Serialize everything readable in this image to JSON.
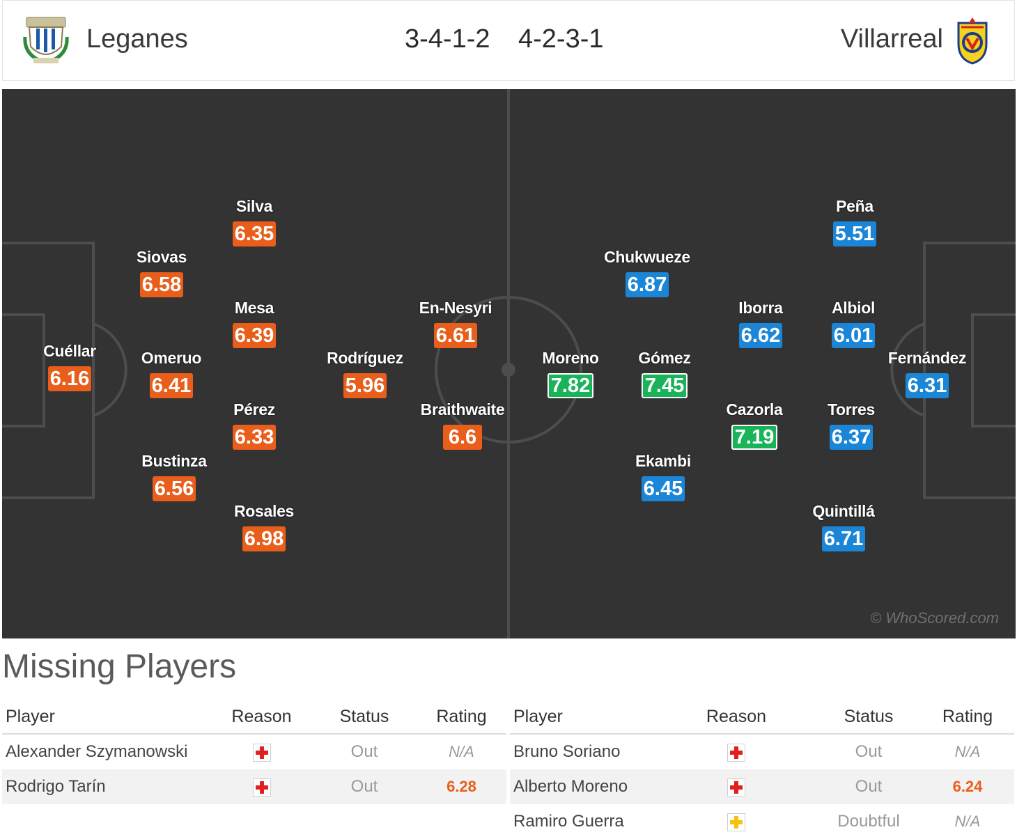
{
  "header": {
    "home_team": "Leganes",
    "away_team": "Villarreal",
    "home_formation": "3-4-1-2",
    "away_formation": "4-2-3-1"
  },
  "pitch": {
    "watermark": "© WhoScored.com",
    "colors": {
      "pitch": "#333333",
      "lines": "#4a4a4a",
      "orange": "#e95e1a",
      "blue": "#1b86d8",
      "green": "#19b35a"
    },
    "home_players": [
      {
        "name": "Cuéllar",
        "rating": "6.16"
      },
      {
        "name": "Siovas",
        "rating": "6.58"
      },
      {
        "name": "Omeruo",
        "rating": "6.41"
      },
      {
        "name": "Bustinza",
        "rating": "6.56"
      },
      {
        "name": "Silva",
        "rating": "6.35"
      },
      {
        "name": "Mesa",
        "rating": "6.39"
      },
      {
        "name": "Pérez",
        "rating": "6.33"
      },
      {
        "name": "Rosales",
        "rating": "6.98"
      },
      {
        "name": "Rodríguez",
        "rating": "5.96"
      },
      {
        "name": "En-Nesyri",
        "rating": "6.61"
      },
      {
        "name": "Braithwaite",
        "rating": "6.6"
      }
    ],
    "away_players": [
      {
        "name": "Moreno",
        "rating": "7.82",
        "highlight": true
      },
      {
        "name": "Chukwueze",
        "rating": "6.87"
      },
      {
        "name": "Gómez",
        "rating": "7.45",
        "highlight": true
      },
      {
        "name": "Ekambi",
        "rating": "6.45"
      },
      {
        "name": "Iborra",
        "rating": "6.62"
      },
      {
        "name": "Cazorla",
        "rating": "7.19",
        "highlight": true
      },
      {
        "name": "Peña",
        "rating": "5.51"
      },
      {
        "name": "Albiol",
        "rating": "6.01"
      },
      {
        "name": "Torres",
        "rating": "6.37"
      },
      {
        "name": "Quintillá",
        "rating": "6.71"
      },
      {
        "name": "Fernández",
        "rating": "6.31"
      }
    ]
  },
  "missing": {
    "title": "Missing Players",
    "columns": {
      "player": "Player",
      "reason": "Reason",
      "status": "Status",
      "rating": "Rating"
    },
    "home": [
      {
        "player": "Alexander Szymanowski",
        "reason_icon": "injury-cross-icon",
        "status": "Out",
        "rating": "N/A"
      },
      {
        "player": "Rodrigo Tarín",
        "reason_icon": "injury-cross-icon",
        "status": "Out",
        "rating": "6.28"
      }
    ],
    "away": [
      {
        "player": "Bruno Soriano",
        "reason_icon": "injury-cross-icon",
        "status": "Out",
        "rating": "N/A"
      },
      {
        "player": "Alberto Moreno",
        "reason_icon": "injury-cross-icon",
        "status": "Out",
        "rating": "6.24"
      },
      {
        "player": "Ramiro Guerra",
        "reason_icon": "doubtful-cross-icon",
        "status": "Doubtful",
        "rating": "N/A"
      }
    ],
    "icon_colors": {
      "injury": "#e02020",
      "doubtful": "#f4c20d"
    }
  }
}
